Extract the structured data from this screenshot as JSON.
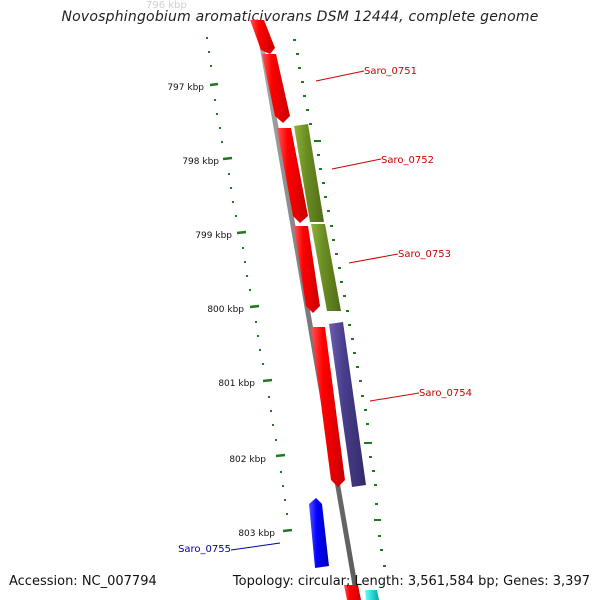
{
  "title": "Novosphingobium aromaticivorans DSM 12444, complete genome",
  "faint_label": "796 kbp",
  "footer": {
    "accession": "Accession: NC_007794",
    "summary": "Topology: circular; Length: 3,561,584 bp; Genes: 3,397"
  },
  "colors": {
    "backbone": "#8a8a8a",
    "cds": "#ff0000",
    "gene_olive": "#6b8e23",
    "gene_purple": "#483d8b",
    "gene_blue": "#0000ff",
    "gene_cyan": "#00cccc",
    "ticks": "#1f7a1f",
    "label_red": "#cc0000",
    "label_blue": "#0000aa"
  },
  "ticks": [
    "797 kbp",
    "798 kbp",
    "799 kbp",
    "800 kbp",
    "801 kbp",
    "802 kbp",
    "803 kbp"
  ],
  "genes": [
    {
      "name": "Saro_0751",
      "label_color": "red"
    },
    {
      "name": "Saro_0752",
      "label_color": "red"
    },
    {
      "name": "Saro_0753",
      "label_color": "red"
    },
    {
      "name": "Saro_0754",
      "label_color": "red"
    },
    {
      "name": "Saro_0755",
      "label_color": "blue"
    }
  ]
}
